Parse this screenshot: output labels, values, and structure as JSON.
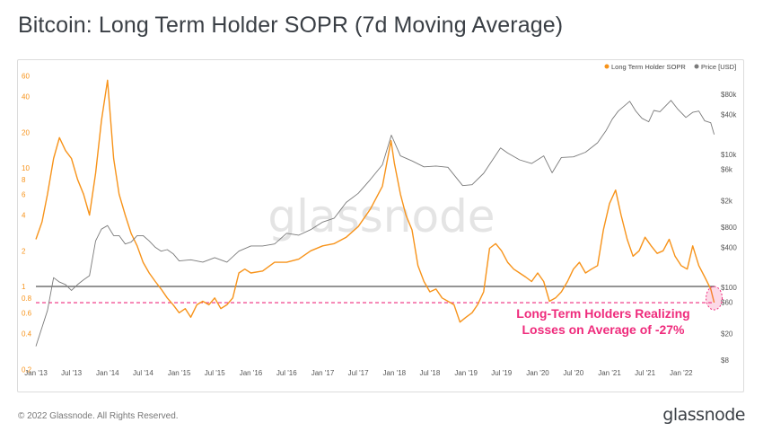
{
  "chart_data": {
    "type": "line",
    "title": "Bitcoin: Long Term Holder SOPR (7d Moving Average)",
    "watermark": "glassnode",
    "x_tick_labels": [
      "Jan '13",
      "Jul '13",
      "Jan '14",
      "Jul '14",
      "Jan '15",
      "Jul '15",
      "Jan '16",
      "Jul '16",
      "Jan '17",
      "Jul '17",
      "Jan '18",
      "Jul '18",
      "Jan '19",
      "Jul '19",
      "Jan '20",
      "Jul '20",
      "Jan '21",
      "Jul '21",
      "Jan '22"
    ],
    "x_range": [
      "2013-01-01",
      "2022-06-20"
    ],
    "y_left": {
      "scale": "log",
      "range": [
        0.2,
        70
      ],
      "tick_labels": [
        "60",
        "40",
        "20",
        "10",
        "8",
        "6",
        "4",
        "2",
        "1",
        "0.8",
        "0.6",
        "0.4",
        "0.2"
      ],
      "tick_values": [
        60,
        40,
        20,
        10,
        8,
        6,
        4,
        2,
        1,
        0.8,
        0.6,
        0.4,
        0.2
      ]
    },
    "y_right": {
      "scale": "log",
      "range": [
        8,
        160000
      ],
      "tick_labels": [
        "$80k",
        "$40k",
        "$10k",
        "$6k",
        "$2k",
        "$800",
        "$400",
        "$100",
        "$60",
        "$20",
        "$8"
      ],
      "tick_values": [
        80000,
        40000,
        10000,
        6000,
        2000,
        800,
        400,
        100,
        60,
        20,
        8
      ]
    },
    "legend": {
      "placement": "top-right"
    },
    "grid": false,
    "reference_lines": [
      {
        "y": 1.0,
        "axis": "left",
        "style": "solid"
      },
      {
        "y": 0.73,
        "axis": "left",
        "style": "dashed"
      }
    ],
    "annotation": {
      "line1": "Long-Term Holders Realizing",
      "line2": "Losses on Average of -27%"
    },
    "series": [
      {
        "name": "Long Term Holder SOPR",
        "axis": "left",
        "color": "#f7931a",
        "x": [
          "2013-01-01",
          "2013-02-01",
          "2013-03-01",
          "2013-04-01",
          "2013-05-01",
          "2013-06-01",
          "2013-07-01",
          "2013-08-01",
          "2013-09-01",
          "2013-10-01",
          "2013-11-01",
          "2013-12-01",
          "2014-01-01",
          "2014-02-01",
          "2014-03-01",
          "2014-04-01",
          "2014-05-01",
          "2014-06-01",
          "2014-07-01",
          "2014-08-01",
          "2014-09-01",
          "2014-10-01",
          "2014-11-01",
          "2014-12-01",
          "2015-01-01",
          "2015-02-01",
          "2015-03-01",
          "2015-04-01",
          "2015-05-01",
          "2015-06-01",
          "2015-07-01",
          "2015-08-01",
          "2015-09-01",
          "2015-10-01",
          "2015-11-01",
          "2015-12-01",
          "2016-01-01",
          "2016-03-01",
          "2016-05-01",
          "2016-07-01",
          "2016-09-01",
          "2016-11-01",
          "2017-01-01",
          "2017-03-01",
          "2017-05-01",
          "2017-07-01",
          "2017-09-01",
          "2017-11-01",
          "2017-12-15",
          "2018-01-01",
          "2018-02-01",
          "2018-03-01",
          "2018-04-01",
          "2018-05-01",
          "2018-06-01",
          "2018-07-01",
          "2018-08-01",
          "2018-09-01",
          "2018-10-01",
          "2018-11-01",
          "2018-12-01",
          "2019-01-01",
          "2019-02-01",
          "2019-03-01",
          "2019-04-01",
          "2019-05-01",
          "2019-06-01",
          "2019-07-01",
          "2019-08-01",
          "2019-09-01",
          "2019-10-01",
          "2019-11-01",
          "2019-12-01",
          "2020-01-01",
          "2020-02-01",
          "2020-03-01",
          "2020-04-01",
          "2020-05-01",
          "2020-06-01",
          "2020-07-01",
          "2020-08-01",
          "2020-09-01",
          "2020-10-01",
          "2020-11-01",
          "2020-12-01",
          "2021-01-01",
          "2021-02-01",
          "2021-03-01",
          "2021-04-01",
          "2021-05-01",
          "2021-06-01",
          "2021-07-01",
          "2021-08-01",
          "2021-09-01",
          "2021-10-01",
          "2021-11-01",
          "2021-12-01",
          "2022-01-01",
          "2022-02-01",
          "2022-03-01",
          "2022-04-01",
          "2022-05-01",
          "2022-06-01",
          "2022-06-18"
        ],
        "values": [
          2.5,
          3.5,
          6,
          12,
          18,
          14,
          12,
          8,
          6,
          4,
          9,
          25,
          55,
          12,
          6,
          4,
          2.8,
          2.2,
          1.6,
          1.3,
          1.1,
          0.95,
          0.8,
          0.7,
          0.6,
          0.65,
          0.55,
          0.7,
          0.75,
          0.7,
          0.8,
          0.65,
          0.7,
          0.8,
          1.3,
          1.4,
          1.3,
          1.35,
          1.6,
          1.6,
          1.7,
          2.0,
          2.2,
          2.3,
          2.6,
          3.2,
          4.5,
          7,
          17,
          11,
          6,
          4,
          3,
          1.5,
          1.1,
          0.9,
          0.95,
          0.8,
          0.75,
          0.7,
          0.5,
          0.55,
          0.6,
          0.7,
          0.9,
          2.1,
          2.3,
          2.0,
          1.6,
          1.4,
          1.3,
          1.2,
          1.1,
          1.3,
          1.1,
          0.75,
          0.8,
          0.9,
          1.1,
          1.4,
          1.6,
          1.3,
          1.4,
          1.5,
          3.0,
          5,
          6.5,
          4,
          2.5,
          1.8,
          2.0,
          2.6,
          2.2,
          1.9,
          2.0,
          2.5,
          1.8,
          1.5,
          1.4,
          2.2,
          1.5,
          1.2,
          0.95,
          0.73
        ]
      },
      {
        "name": "Price [USD]",
        "axis": "right",
        "color": "#7a7a7a",
        "x": [
          "2013-01-01",
          "2013-02-01",
          "2013-03-01",
          "2013-04-01",
          "2013-05-01",
          "2013-06-01",
          "2013-07-01",
          "2013-08-01",
          "2013-09-01",
          "2013-10-01",
          "2013-11-01",
          "2013-12-01",
          "2014-01-01",
          "2014-02-01",
          "2014-03-01",
          "2014-04-01",
          "2014-05-01",
          "2014-06-01",
          "2014-07-01",
          "2014-08-01",
          "2014-09-01",
          "2014-10-01",
          "2014-11-01",
          "2014-12-01",
          "2015-01-01",
          "2015-03-01",
          "2015-05-01",
          "2015-07-01",
          "2015-09-01",
          "2015-11-01",
          "2016-01-01",
          "2016-03-01",
          "2016-05-01",
          "2016-07-01",
          "2016-09-01",
          "2016-11-01",
          "2017-01-01",
          "2017-03-01",
          "2017-05-01",
          "2017-07-01",
          "2017-09-01",
          "2017-11-01",
          "2017-12-17",
          "2018-02-01",
          "2018-04-01",
          "2018-06-01",
          "2018-08-01",
          "2018-10-01",
          "2018-12-15",
          "2019-02-01",
          "2019-04-01",
          "2019-06-26",
          "2019-08-01",
          "2019-10-01",
          "2019-12-01",
          "2020-02-01",
          "2020-03-15",
          "2020-05-01",
          "2020-07-01",
          "2020-09-01",
          "2020-11-01",
          "2020-12-15",
          "2021-01-15",
          "2021-02-15",
          "2021-04-14",
          "2021-05-15",
          "2021-06-15",
          "2021-07-20",
          "2021-08-15",
          "2021-09-15",
          "2021-11-10",
          "2021-12-15",
          "2022-01-25",
          "2022-03-01",
          "2022-04-01",
          "2022-05-01",
          "2022-06-01",
          "2022-06-18"
        ],
        "values": [
          13,
          25,
          45,
          140,
          120,
          110,
          90,
          110,
          130,
          150,
          500,
          750,
          850,
          600,
          600,
          450,
          480,
          600,
          600,
          500,
          400,
          350,
          370,
          320,
          250,
          260,
          240,
          280,
          240,
          350,
          420,
          420,
          450,
          650,
          610,
          740,
          960,
          1100,
          1900,
          2600,
          4200,
          7000,
          19500,
          9500,
          8000,
          6500,
          6700,
          6400,
          3400,
          3500,
          5200,
          12500,
          10500,
          8300,
          7300,
          9500,
          5300,
          9000,
          9200,
          10800,
          15000,
          23000,
          34000,
          45000,
          63000,
          45000,
          35000,
          31000,
          46000,
          44000,
          65000,
          48000,
          36000,
          43000,
          45000,
          32000,
          30000,
          20000
        ]
      }
    ]
  },
  "legend_items": [
    "Long Term Holder SOPR",
    "Price [USD]"
  ],
  "colors": {
    "sopr": "#f7931a",
    "price": "#7a7a7a",
    "annotation": "#ef2b7c",
    "axis_left": "#f7931a",
    "axis_right": "#555555"
  },
  "footer": {
    "copyright": "© 2022 Glassnode. All Rights Reserved.",
    "brand": "glassnode"
  }
}
